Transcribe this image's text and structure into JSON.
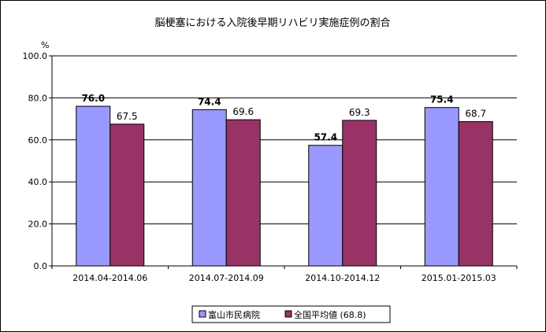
{
  "chart_data": {
    "type": "bar",
    "title": "脳梗塞における入院後早期リハビリ実施症例の割合",
    "ylabel": "%",
    "ylim": [
      0,
      100
    ],
    "yticks": [
      "0.0",
      "20.0",
      "40.0",
      "60.0",
      "80.0",
      "100.0"
    ],
    "grid": true,
    "legend_position": "bottom",
    "categories": [
      "2014.04-2014.06",
      "2014.07-2014.09",
      "2014.10-2014.12",
      "2015.01-2015.03"
    ],
    "series": [
      {
        "name": "富山市民病院",
        "values": [
          76.0,
          74.4,
          57.4,
          75.4
        ],
        "labels": [
          "76.0",
          "74.4",
          "57.4",
          "75.4"
        ],
        "color": "#9999ff",
        "label_style": "bold"
      },
      {
        "name": "全国平均値 (68.8)",
        "values": [
          67.5,
          69.6,
          69.3,
          68.7
        ],
        "labels": [
          "67.5",
          "69.6",
          "69.3",
          "68.7"
        ],
        "color": "#993366",
        "label_style": "normal"
      }
    ]
  }
}
